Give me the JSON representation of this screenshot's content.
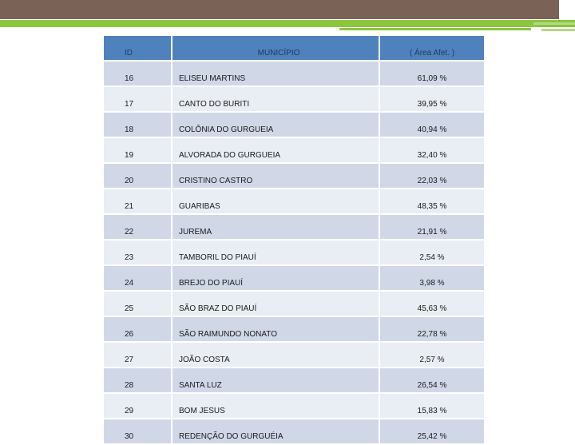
{
  "table": {
    "headers": {
      "id": "ID",
      "municipio": "MUNICÍPIO",
      "area": "( Área Afet. )"
    },
    "rows": [
      {
        "id": "16",
        "municipio": "ELISEU MARTINS",
        "area": "61,09 %"
      },
      {
        "id": "17",
        "municipio": "CANTO DO BURITI",
        "area": "39,95 %"
      },
      {
        "id": "18",
        "municipio": "COLÔNIA DO GURGUEIA",
        "area": "40,94 %"
      },
      {
        "id": "19",
        "municipio": "ALVORADA DO GURGUEIA",
        "area": "32,40 %"
      },
      {
        "id": "20",
        "municipio": "CRISTINO CASTRO",
        "area": "22,03 %"
      },
      {
        "id": "21",
        "municipio": "GUARIBAS",
        "area": "48,35 %"
      },
      {
        "id": "22",
        "municipio": "JUREMA",
        "area": "21,91 %"
      },
      {
        "id": "23",
        "municipio": "TAMBORIL DO PIAUÍ",
        "area": "2,54 %"
      },
      {
        "id": "24",
        "municipio": "BREJO DO PIAUÍ",
        "area": "3,98 %"
      },
      {
        "id": "25",
        "municipio": "SÃO BRAZ DO PIAUÍ",
        "area": "45,63 %"
      },
      {
        "id": "26",
        "municipio": "SÃO RAIMUNDO NONATO",
        "area": "22,78 %"
      },
      {
        "id": "27",
        "municipio": "JOÃO COSTA",
        "area": "2,57 %"
      },
      {
        "id": "28",
        "municipio": "SANTA LUZ",
        "area": "26,54 %"
      },
      {
        "id": "29",
        "municipio": "BOM JESUS",
        "area": "15,83 %"
      },
      {
        "id": "30",
        "municipio": "REDENÇÃO DO GURGUÉIA",
        "area": "25,42 %"
      }
    ]
  },
  "colors": {
    "header": "#4f81bd",
    "row_odd": "#d0d8e8",
    "row_even": "#e9edf4",
    "top_bar": "#7a6256",
    "accent_green": "#8cc63f"
  }
}
